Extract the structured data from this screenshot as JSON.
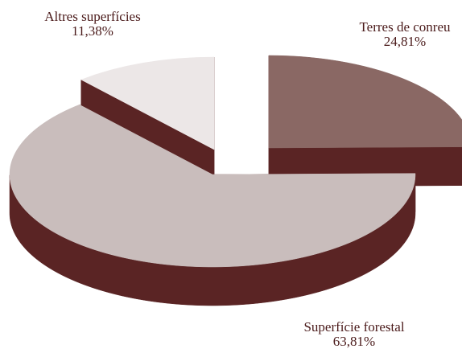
{
  "chart_data": {
    "type": "pie",
    "style": "3d-exploded",
    "slices": [
      {
        "label": "Terres de conreu",
        "value": 24.81,
        "display": "24,81%",
        "color": "#8a6864",
        "side_color": "#5a2424"
      },
      {
        "label": "Superfície forestal",
        "value": 63.81,
        "display": "63,81%",
        "color": "#c9bdbc",
        "side_color": "#5a2424"
      },
      {
        "label": "Altres superfícies",
        "value": 11.38,
        "display": "11,38%",
        "color": "#ece7e7",
        "side_color": "#5a2424"
      }
    ],
    "label_color": "#4a1a1a",
    "legend": "none"
  }
}
